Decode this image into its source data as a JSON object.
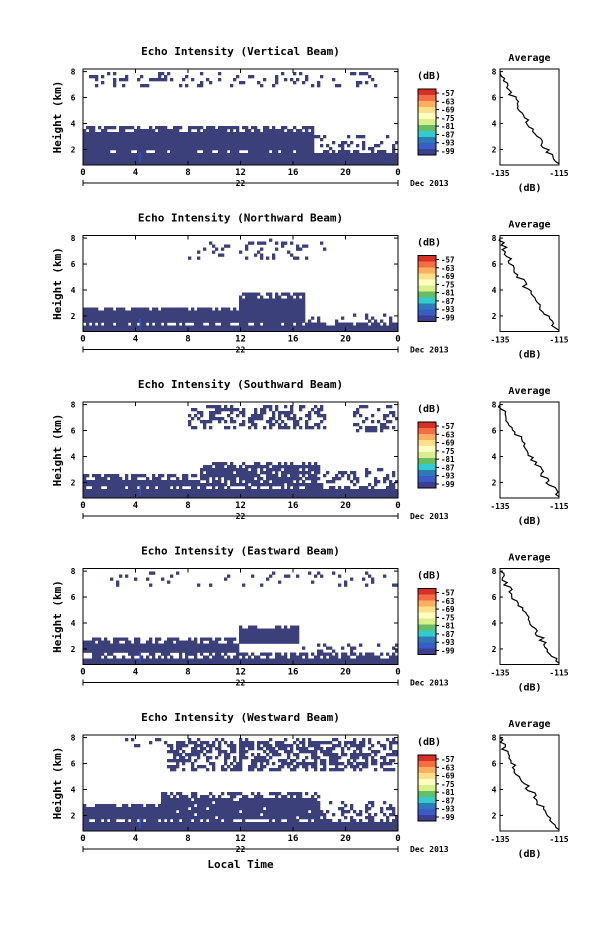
{
  "figure": {
    "colorbar_unit": "(dB)",
    "colorbar_ticks": [
      "-57",
      "-63",
      "-69",
      "-75",
      "-81",
      "-87",
      "-93",
      "-99"
    ],
    "colorbar_colors": [
      "#d73027",
      "#f46d43",
      "#fdae61",
      "#fee08b",
      "#ffffbf",
      "#d9ef8b",
      "#66bd63",
      "#33cccc",
      "#2c7bb6",
      "#3a5cc7",
      "#3b3f8f"
    ],
    "time_ticks": [
      "0",
      "4",
      "8",
      "12",
      "16",
      "20",
      "0"
    ],
    "day_label": "22",
    "month_label": "Dec 2013",
    "x_axis_title": "Local Time",
    "y_axis_title": "Height (km)",
    "y_ticks": [
      "2",
      "4",
      "6",
      "8"
    ],
    "avg_title": "Average",
    "avg_x_ticks": [
      "-135",
      "-115"
    ],
    "avg_y_ticks": [
      "2",
      "4",
      "6",
      "8"
    ],
    "avg_unit": "(dB)",
    "echo_color": "#3b3f7a"
  },
  "chart_data": [
    {
      "type": "heatmap",
      "title": "Echo Intensity (Vertical Beam)",
      "xlabel": "",
      "ylabel": "Height (km)",
      "xlim": [
        0,
        24
      ],
      "ylim": [
        0.8,
        8.2
      ],
      "layers": [
        {
          "t_start": 0,
          "t_end": 24,
          "h_low": 0.8,
          "h_top": 2.0,
          "density": 1.0
        },
        {
          "t_start": 0,
          "t_end": 17.5,
          "h_low": 2.0,
          "h_top": 3.7,
          "density": 1.0
        },
        {
          "t_start": 17.5,
          "t_end": 24,
          "h_low": 2.0,
          "h_top": 3.0,
          "density": 0.25
        },
        {
          "t_start": 0.5,
          "t_end": 22.5,
          "h_low": 6.8,
          "h_top": 8.0,
          "density": 0.2
        }
      ],
      "average_profile": {
        "x": [
          -115,
          -118,
          -121,
          -124,
          -127,
          -130,
          -133,
          -135
        ],
        "h": [
          0.9,
          1.7,
          2.6,
          3.6,
          4.6,
          5.8,
          7.0,
          8.0
        ]
      }
    },
    {
      "type": "heatmap",
      "title": "Echo Intensity (Northward Beam)",
      "xlabel": "",
      "ylabel": "Height (km)",
      "xlim": [
        0,
        24
      ],
      "ylim": [
        0.8,
        8.2
      ],
      "layers": [
        {
          "t_start": 0,
          "t_end": 24,
          "h_low": 0.8,
          "h_top": 1.6,
          "density": 1.0
        },
        {
          "t_start": 0,
          "t_end": 12,
          "h_low": 1.6,
          "h_top": 2.7,
          "density": 1.0
        },
        {
          "t_start": 12,
          "t_end": 17,
          "h_low": 1.6,
          "h_top": 3.7,
          "density": 1.0
        },
        {
          "t_start": 17,
          "t_end": 24,
          "h_low": 1.6,
          "h_top": 2.3,
          "density": 0.25
        },
        {
          "t_start": 8,
          "t_end": 18.5,
          "h_low": 6.3,
          "h_top": 8.0,
          "density": 0.18
        }
      ],
      "average_profile": {
        "x": [
          -115,
          -118,
          -121,
          -124,
          -127,
          -130,
          -133,
          -135
        ],
        "h": [
          0.9,
          1.6,
          2.5,
          3.5,
          4.5,
          5.6,
          6.8,
          8.0
        ]
      }
    },
    {
      "type": "heatmap",
      "title": "Echo Intensity (Southward Beam)",
      "xlabel": "",
      "ylabel": "Height (km)",
      "xlim": [
        0,
        24
      ],
      "ylim": [
        0.8,
        8.2
      ],
      "layers": [
        {
          "t_start": 0,
          "t_end": 24,
          "h_low": 0.8,
          "h_top": 1.8,
          "density": 1.0
        },
        {
          "t_start": 0,
          "t_end": 9,
          "h_low": 1.8,
          "h_top": 2.6,
          "density": 1.0
        },
        {
          "t_start": 9,
          "t_end": 18,
          "h_low": 1.8,
          "h_top": 3.6,
          "density": 0.85
        },
        {
          "t_start": 18,
          "t_end": 24,
          "h_low": 1.8,
          "h_top": 3.2,
          "density": 0.3
        },
        {
          "t_start": 8,
          "t_end": 18.5,
          "h_low": 6.2,
          "h_top": 8.0,
          "density": 0.5
        },
        {
          "t_start": 20.5,
          "t_end": 24,
          "h_low": 5.8,
          "h_top": 8.0,
          "density": 0.3
        }
      ],
      "average_profile": {
        "x": [
          -115,
          -118,
          -121,
          -124,
          -127,
          -130,
          -133,
          -135
        ],
        "h": [
          0.9,
          1.8,
          2.8,
          3.9,
          4.9,
          6.0,
          7.1,
          8.0
        ]
      }
    },
    {
      "type": "heatmap",
      "title": "Echo Intensity (Eastward Beam)",
      "xlabel": "",
      "ylabel": "Height (km)",
      "xlim": [
        0,
        24
      ],
      "ylim": [
        0.8,
        8.2
      ],
      "layers": [
        {
          "t_start": 0,
          "t_end": 24,
          "h_low": 0.8,
          "h_top": 1.7,
          "density": 1.0
        },
        {
          "t_start": 0,
          "t_end": 12,
          "h_low": 1.7,
          "h_top": 2.8,
          "density": 1.0
        },
        {
          "t_start": 12,
          "t_end": 16.5,
          "h_low": 2.4,
          "h_top": 3.9,
          "density": 1.0
        },
        {
          "t_start": 16.5,
          "t_end": 24,
          "h_low": 1.7,
          "h_top": 2.4,
          "density": 0.3
        },
        {
          "t_start": 2,
          "t_end": 24,
          "h_low": 6.8,
          "h_top": 8.0,
          "density": 0.1
        }
      ],
      "average_profile": {
        "x": [
          -115,
          -118,
          -121,
          -124,
          -127,
          -130,
          -133,
          -135
        ],
        "h": [
          0.9,
          1.8,
          2.8,
          3.7,
          4.8,
          5.8,
          7.0,
          8.0
        ]
      }
    },
    {
      "type": "heatmap",
      "title": "Echo Intensity (Westward Beam)",
      "xlabel": "Local Time",
      "ylabel": "Height (km)",
      "xlim": [
        0,
        24
      ],
      "ylim": [
        0.8,
        8.2
      ],
      "layers": [
        {
          "t_start": 0,
          "t_end": 24,
          "h_low": 0.8,
          "h_top": 1.8,
          "density": 1.0
        },
        {
          "t_start": 0,
          "t_end": 6,
          "h_low": 1.8,
          "h_top": 2.9,
          "density": 1.0
        },
        {
          "t_start": 6,
          "t_end": 18,
          "h_low": 1.8,
          "h_top": 3.8,
          "density": 0.95
        },
        {
          "t_start": 18,
          "t_end": 24,
          "h_low": 1.8,
          "h_top": 3.0,
          "density": 0.3
        },
        {
          "t_start": 6.5,
          "t_end": 24,
          "h_low": 5.5,
          "h_top": 8.0,
          "density": 0.55
        },
        {
          "t_start": 2,
          "t_end": 6.5,
          "h_low": 7.2,
          "h_top": 8.0,
          "density": 0.15
        }
      ],
      "average_profile": {
        "x": [
          -115,
          -118,
          -121,
          -124,
          -127,
          -130,
          -133,
          -135
        ],
        "h": [
          0.9,
          1.7,
          2.7,
          3.7,
          4.6,
          5.6,
          6.8,
          8.0
        ]
      }
    }
  ]
}
